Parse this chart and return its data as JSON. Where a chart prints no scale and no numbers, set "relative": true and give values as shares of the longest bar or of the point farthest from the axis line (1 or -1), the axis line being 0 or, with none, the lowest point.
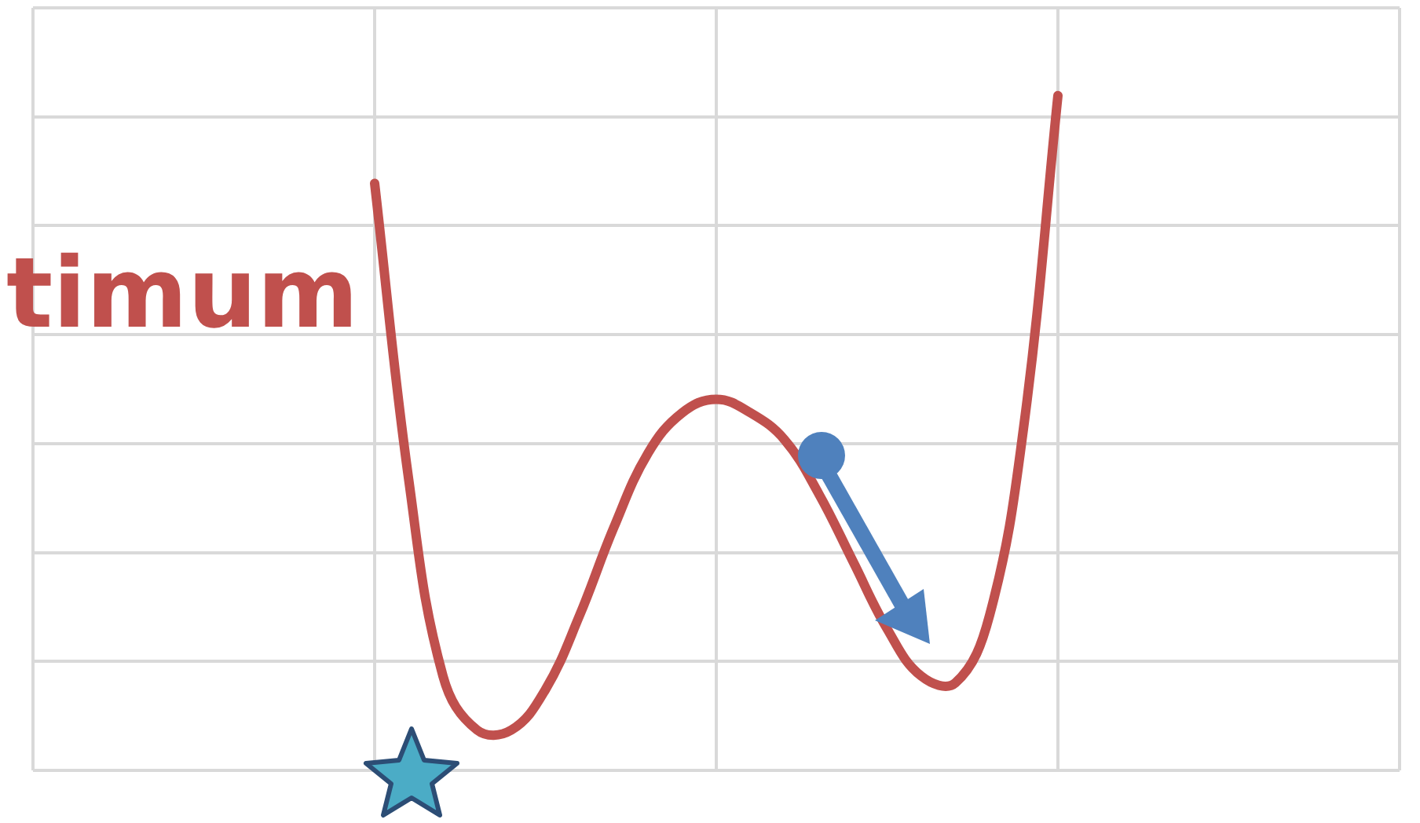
{
  "chart_data": {
    "type": "line",
    "relative": true,
    "grid": true,
    "legend": false,
    "marker": "none",
    "line_style": "solid",
    "annotations": [
      "timum"
    ],
    "categories": [
      null,
      null,
      null,
      null,
      null,
      null,
      null,
      null,
      null,
      null,
      null,
      null,
      null,
      null,
      null,
      null,
      null,
      null,
      null,
      null,
      null,
      null,
      null,
      null,
      null,
      null,
      null,
      null,
      null,
      null,
      null,
      null,
      null,
      null,
      null,
      null,
      null,
      null,
      null,
      null,
      null
    ],
    "series": [
      {
        "color": "#c0504d",
        "values": [
          null,
          null,
          null,
          null,
          null,
          null,
          null,
          null,
          null,
          null,
          0.87,
          0.43,
          0.14,
          0.06,
          0.06,
          0.12,
          0.23,
          0.36,
          0.47,
          0.53,
          0.55,
          0.53,
          0.49,
          0.41,
          0.31,
          0.21,
          0.14,
          0.13,
          0.23,
          0.51,
          1,
          null,
          null,
          null,
          null,
          null,
          null,
          null,
          null,
          null,
          null
        ]
      }
    ]
  }
}
